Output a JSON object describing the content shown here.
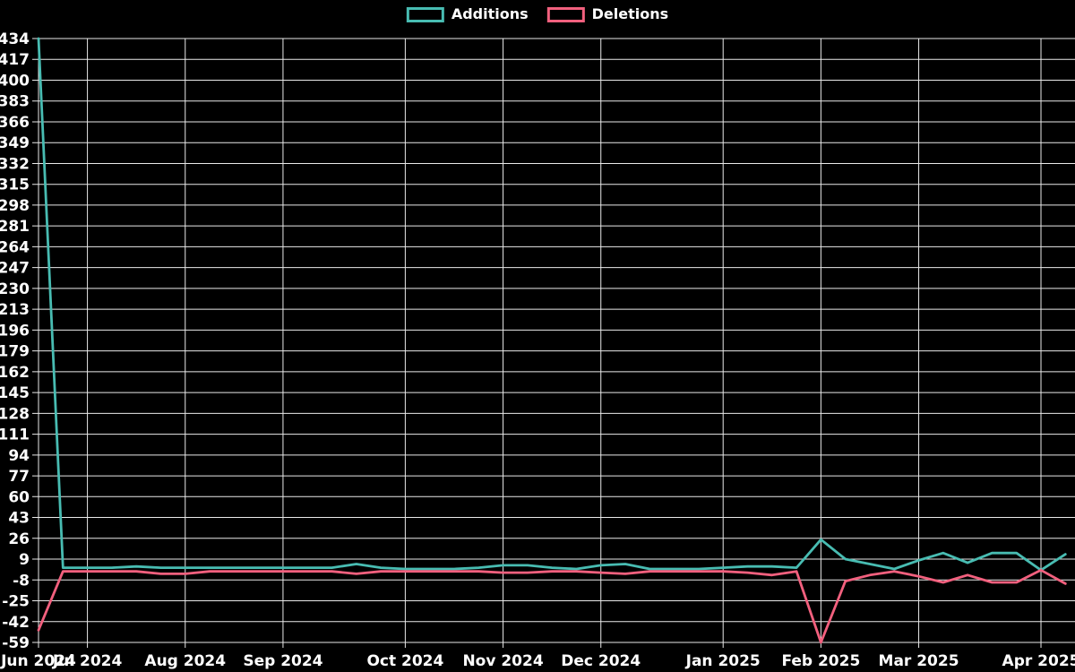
{
  "page": {
    "background_color": "#000000",
    "text_color": "#ffffff",
    "grid_color": "#e9e9e9"
  },
  "legend": {
    "additions_label": "Additions",
    "deletions_label": "Deletions"
  },
  "chart_data": {
    "type": "line",
    "title": "",
    "background": "#000000",
    "grid": true,
    "legend_position": "top-center",
    "x_axis": {
      "unit": "week",
      "tick_labels": [
        "Jun 2024",
        "Jul 2024",
        "Aug 2024",
        "Sep 2024",
        "Oct 2024",
        "Nov 2024",
        "Dec 2024",
        "Jan 2025",
        "Feb 2025",
        "Mar 2025",
        "Apr 2025"
      ],
      "tick_week_indices": [
        0,
        2,
        6,
        10,
        15,
        19,
        23,
        28,
        32,
        36,
        41
      ],
      "num_points": 43
    },
    "y_axis": {
      "min": -59,
      "max": 434,
      "tick_step": 17,
      "tick_labels": [
        434,
        417,
        400,
        383,
        366,
        349,
        332,
        315,
        298,
        281,
        264,
        247,
        230,
        213,
        196,
        179,
        162,
        145,
        128,
        111,
        94,
        77,
        60,
        43,
        26,
        9,
        -8,
        -25,
        -42,
        -59
      ]
    },
    "series": [
      {
        "name": "Additions",
        "color": "#48bcb2",
        "values": [
          434,
          2,
          2,
          2,
          3,
          2,
          2,
          2,
          2,
          2,
          2,
          2,
          2,
          5,
          2,
          1,
          1,
          1,
          2,
          4,
          4,
          2,
          1,
          4,
          5,
          1,
          1,
          1,
          2,
          3,
          3,
          2,
          25,
          9,
          5,
          1,
          8,
          14,
          6,
          14,
          14,
          0,
          13
        ]
      },
      {
        "name": "Deletions",
        "color": "#f2607e",
        "values": [
          -49,
          -1,
          -1,
          -1,
          -1,
          -3,
          -3,
          -1,
          -1,
          -1,
          -1,
          -1,
          -1,
          -3,
          -1,
          -1,
          -1,
          -1,
          -1,
          -2,
          -2,
          -1,
          -1,
          -2,
          -3,
          -1,
          -1,
          -1,
          -1,
          -2,
          -4,
          -1,
          -59,
          -9,
          -4,
          -1,
          -5,
          -10,
          -4,
          -10,
          -10,
          0,
          -11
        ]
      }
    ]
  }
}
